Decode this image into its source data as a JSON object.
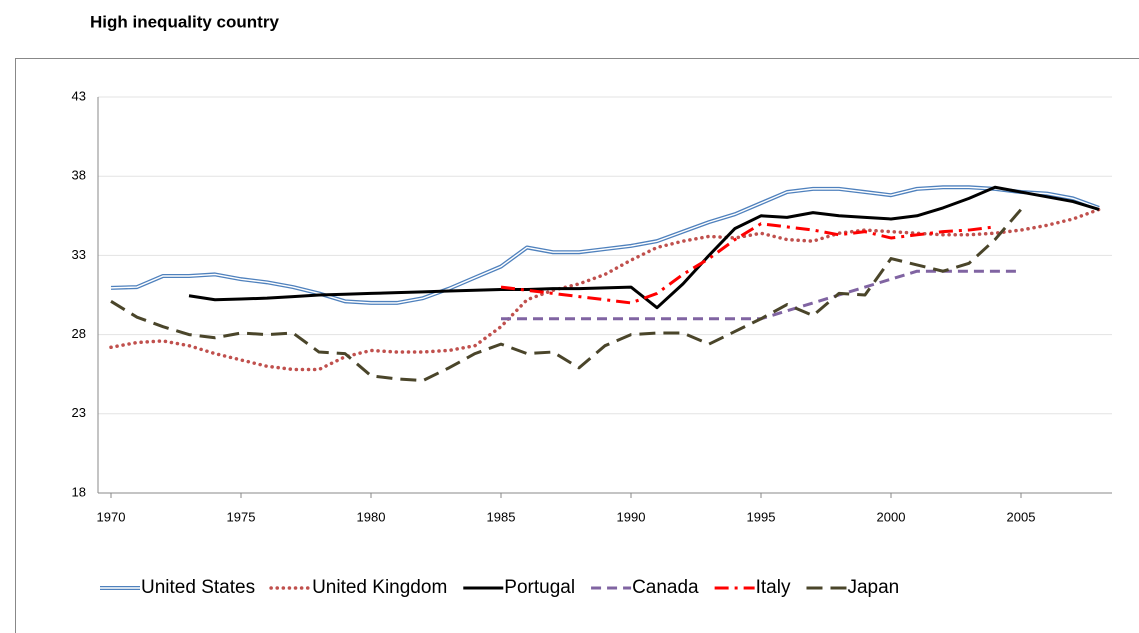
{
  "chart_data": {
    "type": "line",
    "title": "High inequality country",
    "x": [
      1970,
      1971,
      1972,
      1973,
      1974,
      1975,
      1976,
      1977,
      1978,
      1979,
      1980,
      1981,
      1982,
      1983,
      1984,
      1985,
      1986,
      1987,
      1988,
      1989,
      1990,
      1991,
      1992,
      1993,
      1994,
      1995,
      1996,
      1997,
      1998,
      1999,
      2000,
      2001,
      2002,
      2003,
      2004,
      2005,
      2006,
      2007,
      2008
    ],
    "xlim": [
      1969.5,
      2008.5
    ],
    "xticks": [
      1970,
      1975,
      1980,
      1985,
      1990,
      1995,
      2000,
      2005
    ],
    "ylim": [
      18,
      43
    ],
    "yticks": [
      18,
      23,
      28,
      33,
      38,
      43
    ],
    "grid": true,
    "legend": "bottom",
    "series": [
      {
        "name": "United States",
        "color": "#4f81bd",
        "style": "double",
        "values": [
          30.95,
          31.0,
          31.7,
          31.7,
          31.8,
          31.5,
          31.3,
          31.0,
          30.6,
          30.1,
          30.0,
          30.0,
          30.3,
          30.9,
          31.6,
          32.3,
          33.5,
          33.2,
          33.2,
          33.4,
          33.6,
          33.9,
          34.5,
          35.1,
          35.6,
          36.3,
          37.0,
          37.2,
          37.2,
          37.0,
          36.8,
          37.2,
          37.3,
          37.3,
          37.2,
          37.0,
          36.9,
          36.6,
          36.0
        ]
      },
      {
        "name": "United Kingdom",
        "color": "#c0504d",
        "style": "dotted",
        "values": [
          27.2,
          27.5,
          27.6,
          27.3,
          26.8,
          26.4,
          26.0,
          25.8,
          25.8,
          26.6,
          27.0,
          26.9,
          26.9,
          27.0,
          27.3,
          28.5,
          30.2,
          30.8,
          31.2,
          31.8,
          32.7,
          33.5,
          33.9,
          34.2,
          34.1,
          34.4,
          34.0,
          33.9,
          34.4,
          34.6,
          34.5,
          34.4,
          34.3,
          34.3,
          34.4,
          34.6,
          34.9,
          35.3,
          35.9
        ]
      },
      {
        "name": "Portugal",
        "color": "#000000",
        "style": "solid",
        "values": [
          null,
          null,
          null,
          30.45,
          30.2,
          30.25,
          30.3,
          30.4,
          30.5,
          30.55,
          30.6,
          30.65,
          30.7,
          30.75,
          30.8,
          30.85,
          30.85,
          30.9,
          30.9,
          30.95,
          31.0,
          29.7,
          31.2,
          33.0,
          34.7,
          35.5,
          35.4,
          35.7,
          35.5,
          35.4,
          35.3,
          35.5,
          36.0,
          36.6,
          37.3,
          37.0,
          36.7,
          36.4,
          35.9
        ]
      },
      {
        "name": "Canada",
        "color": "#8064a2",
        "style": "dashed",
        "values": [
          null,
          null,
          null,
          null,
          null,
          null,
          null,
          null,
          null,
          null,
          null,
          null,
          null,
          null,
          null,
          29.0,
          29.0,
          29.0,
          29.0,
          29.0,
          29.0,
          29.0,
          29.0,
          29.0,
          29.0,
          29.0,
          29.5,
          30.0,
          30.5,
          31.0,
          31.5,
          32.0,
          32.0,
          32.0,
          32.0,
          32.0,
          null,
          null,
          null
        ]
      },
      {
        "name": "Italy",
        "color": "#ff0000",
        "style": "dashdot",
        "values": [
          null,
          null,
          null,
          null,
          null,
          null,
          null,
          null,
          null,
          null,
          null,
          null,
          null,
          null,
          null,
          31.0,
          30.8,
          30.6,
          30.4,
          30.2,
          30.0,
          30.6,
          31.8,
          32.8,
          34.0,
          35.0,
          34.8,
          34.6,
          34.3,
          34.5,
          34.1,
          34.3,
          34.5,
          34.6,
          34.8,
          null,
          null,
          null,
          null
        ]
      },
      {
        "name": "Japan",
        "color": "#4a452a",
        "style": "longdash",
        "values": [
          30.1,
          29.1,
          28.5,
          28.0,
          27.8,
          28.1,
          28.0,
          28.1,
          26.9,
          26.8,
          25.4,
          25.2,
          25.1,
          25.9,
          26.8,
          27.4,
          26.8,
          26.9,
          25.9,
          27.3,
          28.0,
          28.1,
          28.1,
          27.4,
          28.2,
          29.0,
          29.9,
          29.2,
          30.6,
          30.5,
          32.8,
          32.4,
          32.0,
          32.5,
          34.0,
          35.9,
          null,
          null,
          null
        ]
      }
    ]
  }
}
